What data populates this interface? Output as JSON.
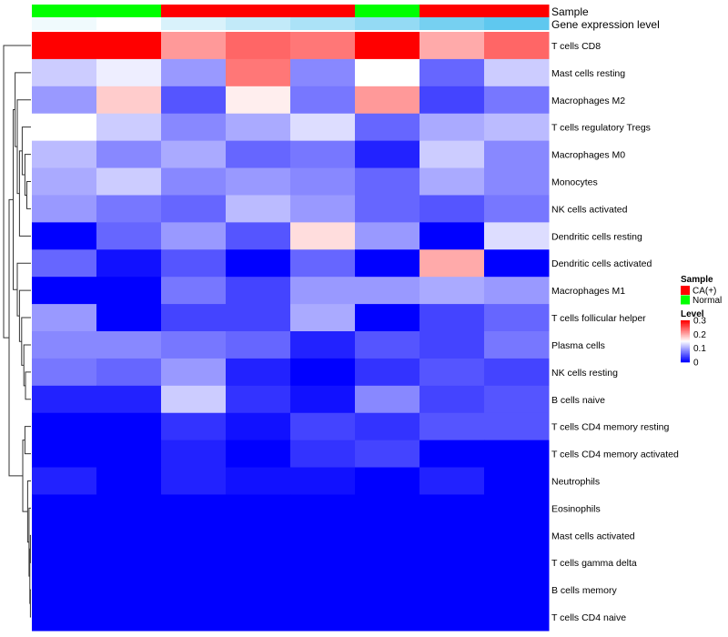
{
  "chart_data": {
    "type": "heatmap",
    "title": "",
    "annotation_tracks": [
      {
        "name": "Sample",
        "values": [
          "Normal",
          "Normal",
          "CA(+)",
          "CA(+)",
          "CA(+)",
          "Normal",
          "CA(+)",
          "CA(+)"
        ]
      },
      {
        "name": "Gene expression level",
        "values": [
          0.06,
          0.04,
          0.09,
          0.12,
          0.15,
          0.18,
          0.22,
          0.25
        ]
      }
    ],
    "rows": [
      "T cells CD8",
      "Mast cells resting",
      "Macrophages M2",
      "T cells regulatory  Tregs",
      "Macrophages M0",
      "Monocytes",
      "NK cells activated",
      "Dendritic cells resting",
      "Dendritic cells activated",
      "Macrophages M1",
      "T cells follicular helper",
      "Plasma cells",
      "NK cells resting",
      "B cells naive",
      "T cells CD4 memory resting",
      "T cells CD4 memory activated",
      "Neutrophils",
      "Eosinophils",
      "Mast cells activated",
      "T cells gamma delta",
      "B cells memory",
      "T cells CD4 naive"
    ],
    "values": [
      [
        0.3,
        0.3,
        0.21,
        0.24,
        0.23,
        0.3,
        0.2,
        0.24
      ],
      [
        0.12,
        0.14,
        0.09,
        0.23,
        0.08,
        0.15,
        0.06,
        0.12
      ],
      [
        0.09,
        0.18,
        0.05,
        0.16,
        0.07,
        0.21,
        0.04,
        0.07
      ],
      [
        0.15,
        0.12,
        0.08,
        0.1,
        0.13,
        0.06,
        0.1,
        0.11
      ],
      [
        0.11,
        0.08,
        0.1,
        0.06,
        0.07,
        0.02,
        0.12,
        0.08
      ],
      [
        0.1,
        0.12,
        0.08,
        0.09,
        0.08,
        0.06,
        0.1,
        0.08
      ],
      [
        0.09,
        0.07,
        0.06,
        0.11,
        0.09,
        0.06,
        0.05,
        0.07
      ],
      [
        0.0,
        0.06,
        0.09,
        0.05,
        0.17,
        0.09,
        0.0,
        0.13
      ],
      [
        0.06,
        0.01,
        0.05,
        0.0,
        0.06,
        0.0,
        0.2,
        0.0
      ],
      [
        0.0,
        0.0,
        0.07,
        0.04,
        0.09,
        0.09,
        0.1,
        0.09
      ],
      [
        0.09,
        0.0,
        0.04,
        0.04,
        0.1,
        0.0,
        0.04,
        0.06
      ],
      [
        0.08,
        0.08,
        0.07,
        0.06,
        0.02,
        0.05,
        0.04,
        0.07
      ],
      [
        0.07,
        0.06,
        0.09,
        0.02,
        0.0,
        0.03,
        0.05,
        0.04
      ],
      [
        0.02,
        0.02,
        0.12,
        0.03,
        0.01,
        0.08,
        0.04,
        0.05
      ],
      [
        0.0,
        0.0,
        0.03,
        0.01,
        0.04,
        0.03,
        0.05,
        0.05
      ],
      [
        0.0,
        0.0,
        0.02,
        0.0,
        0.03,
        0.04,
        0.0,
        0.0
      ],
      [
        0.02,
        0.0,
        0.02,
        0.01,
        0.01,
        0.0,
        0.02,
        0.0
      ],
      [
        0.0,
        0.0,
        0.0,
        0.0,
        0.0,
        0.0,
        0.0,
        0.0
      ],
      [
        0.0,
        0.0,
        0.0,
        0.0,
        0.0,
        0.0,
        0.0,
        0.0
      ],
      [
        0.0,
        0.0,
        0.0,
        0.0,
        0.0,
        0.0,
        0.0,
        0.0
      ],
      [
        0.0,
        0.0,
        0.0,
        0.0,
        0.0,
        0.0,
        0.0,
        0.0
      ],
      [
        0.0,
        0.0,
        0.0,
        0.0,
        0.0,
        0.0,
        0.0,
        0.0
      ]
    ],
    "color_scale": {
      "min": 0,
      "max": 0.3,
      "low": "#0000ff",
      "mid": "#ffffff",
      "high": "#ff0000"
    },
    "gene_level_colors": {
      "low": "#ffffff",
      "high": "#5fc8ef"
    },
    "legend": {
      "placement": "right",
      "sample_title": "Sample",
      "sample_entries": [
        {
          "label": "CA(+)",
          "color": "#ff0000"
        },
        {
          "label": "Normal",
          "color": "#00ff00"
        }
      ],
      "level_title": "Level",
      "level_ticks": [
        "0.3",
        "0.2",
        "0.1",
        "0"
      ],
      "level_tick_values": [
        0.3,
        0.2,
        0.1,
        0
      ]
    },
    "dendrogram": "rows"
  }
}
